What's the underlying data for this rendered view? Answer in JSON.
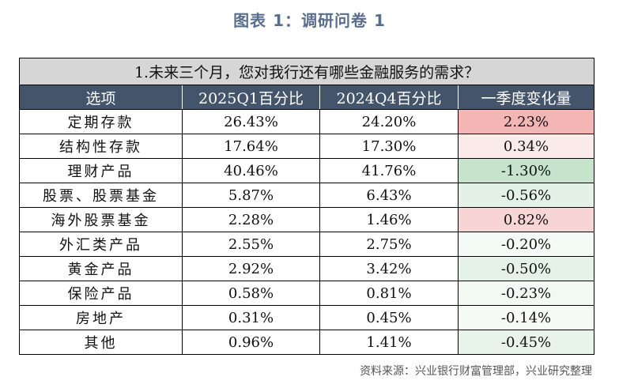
{
  "figure": {
    "title": "图表 1：调研问卷 1",
    "source": "资料来源：兴业银行财富管理部，兴业研究整理"
  },
  "table": {
    "question": "1.未来三个月，您对我行还有哪些金融服务的需求？",
    "headers": [
      "选项",
      "2025Q1百分比",
      "2024Q4百分比",
      "一季度变化量"
    ],
    "rows": [
      {
        "name": "定期存款",
        "q1": "26.43%",
        "q4": "24.20%",
        "change": "2.23%",
        "color": "#f4b5b5"
      },
      {
        "name": "结构性存款",
        "q1": "17.64%",
        "q4": "17.30%",
        "change": "0.34%",
        "color": "#fbeaea"
      },
      {
        "name": "理财产品",
        "q1": "40.46%",
        "q4": "41.76%",
        "change": "-1.30%",
        "color": "#c5e4cb"
      },
      {
        "name": "股票、股票基金",
        "q1": "5.87%",
        "q4": "6.43%",
        "change": "-0.56%",
        "color": "#e3f1e6"
      },
      {
        "name": "海外股票基金",
        "q1": "2.28%",
        "q4": "1.46%",
        "change": "0.82%",
        "color": "#f8d5d5"
      },
      {
        "name": "外汇类产品",
        "q1": "2.55%",
        "q4": "2.75%",
        "change": "-0.20%",
        "color": "#f4faf5"
      },
      {
        "name": "黄金产品",
        "q1": "2.92%",
        "q4": "3.42%",
        "change": "-0.50%",
        "color": "#e5f2e8"
      },
      {
        "name": "保险产品",
        "q1": "0.58%",
        "q4": "0.81%",
        "change": "-0.23%",
        "color": "#f2f9f3"
      },
      {
        "name": "房地产",
        "q1": "0.31%",
        "q4": "0.45%",
        "change": "-0.14%",
        "color": "#f7fbf8"
      },
      {
        "name": "其他",
        "q1": "0.96%",
        "q4": "1.41%",
        "change": "-0.45%",
        "color": "#e8f4ea"
      }
    ]
  }
}
